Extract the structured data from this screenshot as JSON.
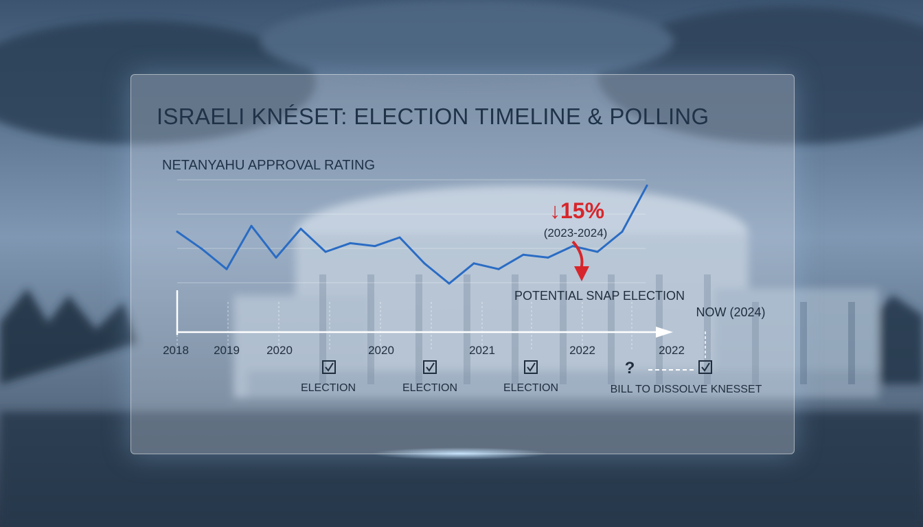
{
  "chart_data": {
    "type": "line",
    "title": "ISRAELI KNÉSET: ELECTION TIMELINE & POLLING",
    "subtitle": "NETANYAHU APPROVAL RATING",
    "x_ticks": [
      "2018",
      "2019",
      "2020",
      "2020",
      "2021",
      "2022",
      "2022"
    ],
    "series": [
      {
        "values": [
          72,
          66,
          59,
          74,
          63,
          73,
          65,
          68,
          67,
          70,
          61,
          54,
          61,
          59,
          64,
          63,
          67,
          65,
          72,
          88
        ]
      }
    ],
    "color": "#2a6cc4",
    "grid": true,
    "events": [
      {
        "label": "ELECTION",
        "icon": "checkbox-icon"
      },
      {
        "label": "ELECTION",
        "icon": "checkbox-icon"
      },
      {
        "label": "ELECTION",
        "icon": "checkbox-icon"
      }
    ],
    "pending": {
      "mark": "?",
      "label": "BILL TO DISSOLVE KNESSET",
      "icon": "checkbox-icon"
    },
    "annotations": {
      "change_value": "↓15%",
      "change_period": "(2023-2024)",
      "snap_election": "POTENTIAL SNAP ELECTION",
      "now_label": "NOW (2024)"
    },
    "accent_color": "#d7262b"
  }
}
